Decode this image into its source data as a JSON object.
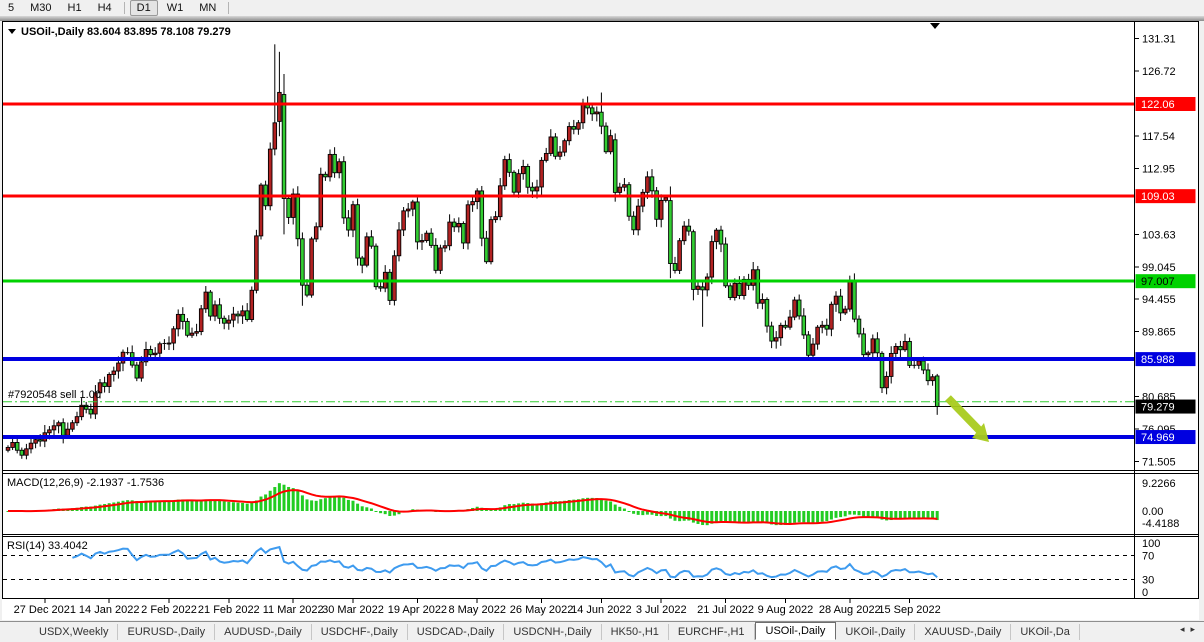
{
  "toolbar": {
    "items": [
      {
        "label": "5",
        "active": false
      },
      {
        "label": "M30",
        "active": false
      },
      {
        "label": "H1",
        "active": false
      },
      {
        "label": "H4",
        "active": false
      },
      {
        "label": "D1",
        "active": true
      },
      {
        "label": "W1",
        "active": false
      },
      {
        "label": "MN",
        "active": false
      }
    ]
  },
  "chart": {
    "title_symbol": "USOil-,Daily",
    "title_quote": "83.604 83.895 78.108 79.279",
    "position_label": "#7920548 sell 1.00",
    "macd_label": "MACD(12,26,9) -2.1937 -1.7536",
    "rsi_label": "RSI(14) 33.4042"
  },
  "chart_data": {
    "type": "candlestick",
    "symbol": "USOil",
    "timeframe": "Daily",
    "last_ohlc": {
      "open": 83.604,
      "high": 83.895,
      "low": 78.108,
      "close": 79.279
    },
    "style": {
      "bull_body": "#B22222",
      "bear_body": "#32CD32",
      "wick": "#000000",
      "macd_hist": "#22CC22",
      "macd_signal": "#FF0000",
      "rsi_line": "#3E9BEF",
      "arrow": "#A9CC1E",
      "chart_bg": "#FFFFFF"
    },
    "price_axis_ticks": [
      "131.31",
      "126.72",
      "117.54",
      "112.95",
      "103.63",
      "99.045",
      "94.455",
      "89.865",
      "80.685",
      "76.095",
      "71.505"
    ],
    "price_badges": [
      {
        "value": "122.06",
        "price": 122.06,
        "bg": "#FF0000",
        "fg": "#FFFFFF"
      },
      {
        "value": "109.03",
        "price": 109.03,
        "bg": "#FF0000",
        "fg": "#FFFFFF"
      },
      {
        "value": "97.007",
        "price": 97.007,
        "bg": "#00D200",
        "fg": "#000000"
      },
      {
        "value": "85.988",
        "price": 85.988,
        "bg": "#0000E0",
        "fg": "#FFFFFF"
      },
      {
        "value": "79.279",
        "price": 79.279,
        "bg": "#000000",
        "fg": "#FFFFFF"
      },
      {
        "value": "74.969",
        "price": 74.969,
        "bg": "#0000E0",
        "fg": "#FFFFFF"
      }
    ],
    "hlines": [
      {
        "name": "resistance-122",
        "price": 122.06,
        "color": "#FF0000",
        "width": 3
      },
      {
        "name": "resistance-109",
        "price": 109.03,
        "color": "#FF0000",
        "width": 3
      },
      {
        "name": "level-97",
        "price": 97.007,
        "color": "#00D200",
        "width": 3
      },
      {
        "name": "support-85",
        "price": 85.988,
        "color": "#0000E0",
        "width": 4
      },
      {
        "name": "support-74",
        "price": 74.969,
        "color": "#0000E0",
        "width": 4
      }
    ],
    "position_line": {
      "price": 79.95,
      "color": "#32CD32",
      "style": "dashdot"
    },
    "bid_line": {
      "price": 79.279,
      "color": "#000000",
      "width": 1
    },
    "date_ticks": [
      {
        "label": "27 Dec 2021",
        "i": 8
      },
      {
        "label": "14 Jan 2022",
        "i": 22
      },
      {
        "label": "2 Feb 2022",
        "i": 35
      },
      {
        "label": "21 Feb 2022",
        "i": 48
      },
      {
        "label": "11 Mar 2022",
        "i": 62
      },
      {
        "label": "30 Mar 2022",
        "i": 75
      },
      {
        "label": "19 Apr 2022",
        "i": 89
      },
      {
        "label": "8 May 2022",
        "i": 102
      },
      {
        "label": "26 May 2022",
        "i": 116
      },
      {
        "label": "14 Jun 2022",
        "i": 129
      },
      {
        "label": "3 Jul 2022",
        "i": 142
      },
      {
        "label": "21 Jul 2022",
        "i": 156
      },
      {
        "label": "9 Aug 2022",
        "i": 169
      },
      {
        "label": "28 Aug 2022",
        "i": 183
      },
      {
        "label": "15 Sep 2022",
        "i": 196
      }
    ],
    "closes": [
      73.5,
      74.2,
      73.1,
      72.4,
      73.3,
      74.1,
      74.6,
      74.4,
      75.57,
      75.98,
      76.56,
      76.99,
      75.21,
      76.08,
      76.99,
      77.85,
      79.46,
      78.9,
      78.23,
      81.22,
      82.64,
      82.12,
      83.82,
      84.3,
      85.43,
      86.96,
      86.9,
      85.14,
      83.31,
      85.6,
      87.35,
      86.61,
      86.82,
      88.15,
      88.2,
      88.26,
      90.27,
      92.31,
      91.32,
      89.36,
      89.66,
      89.88,
      93.1,
      95.46,
      92.07,
      93.66,
      91.76,
      91.07,
      91.5,
      92.35,
      92.1,
      92.81,
      91.59,
      95.72,
      103.41,
      110.6,
      107.67,
      115.68,
      119.4,
      123.7,
      108.7,
      106.02,
      109.33,
      103.01,
      96.44,
      95.04,
      102.98,
      104.7,
      112.12,
      111.76,
      114.93,
      112.34,
      113.9,
      105.96,
      104.24,
      107.82,
      100.28,
      99.27,
      103.28,
      101.96,
      96.23,
      96.03,
      98.26,
      94.29,
      100.6,
      104.25,
      106.95,
      107.2,
      108.21,
      102.56,
      102.75,
      103.79,
      102.07,
      98.54,
      101.7,
      102.02,
      105.36,
      104.69,
      105.17,
      102.41,
      107.81,
      108.26,
      109.77,
      103.09,
      99.76,
      105.71,
      106.13,
      110.49,
      114.2,
      112.4,
      109.59,
      112.21,
      113.23,
      110.29,
      109.77,
      110.33,
      114.09,
      115.07,
      117.4,
      114.67,
      115.26,
      116.87,
      118.87,
      118.5,
      119.41,
      122.11,
      121.51,
      120.67,
      120.93,
      118.93,
      115.31,
      117.58,
      109.56,
      110.3,
      110.65,
      106.19,
      104.27,
      107.62,
      109.57,
      111.76,
      109.78,
      105.76,
      108.43,
      108.8,
      99.5,
      98.53,
      102.73,
      104.79,
      104.09,
      95.84,
      96.3,
      95.78,
      97.59,
      102.6,
      104.22,
      102.26,
      96.35,
      94.7,
      96.7,
      94.98,
      97.26,
      96.42,
      98.62,
      93.89,
      94.42,
      90.66,
      88.54,
      89.01,
      90.76,
      90.5,
      91.93,
      94.34,
      92.09,
      89.41,
      86.53,
      88.11,
      90.5,
      90.77,
      90.23,
      93.74,
      94.89,
      92.52,
      93.06,
      97.01,
      91.64,
      89.55,
      86.61,
      86.87,
      88.85,
      86.88,
      81.94,
      83.54,
      86.79,
      87.78,
      87.31,
      88.48,
      85.1,
      85.11,
      85.73,
      84.45,
      82.94,
      83.49,
      79.279
    ],
    "ohlc_overrides": {
      "58": [
        115.7,
        130.5,
        114.8,
        119.4
      ],
      "59": [
        119.6,
        129.44,
        117.5,
        123.7
      ],
      "60": [
        123.4,
        126.3,
        103.63,
        108.7
      ],
      "64": [
        103.0,
        103.9,
        93.53,
        96.44
      ],
      "129": [
        120.9,
        123.68,
        117.8,
        118.93
      ],
      "132": [
        117.0,
        117.9,
        108.25,
        109.56
      ],
      "144": [
        108.4,
        110.4,
        97.43,
        99.5
      ],
      "149": [
        104.0,
        104.3,
        94.3,
        95.84
      ],
      "151": [
        96.2,
        96.9,
        90.56,
        95.78
      ],
      "190": [
        86.8,
        87.1,
        81.2,
        81.94
      ],
      "202": [
        83.604,
        83.895,
        78.108,
        79.279
      ]
    },
    "macd": {
      "params": "12,26,9",
      "current": -2.1937,
      "signal_current": -1.7536,
      "axis_labels": [
        "9.2266",
        "0.00",
        "-4.4188"
      ]
    },
    "rsi": {
      "period": 14,
      "current": 33.4042,
      "levels_dashed": [
        70,
        30
      ],
      "axis_labels": [
        "100",
        "70",
        "30",
        "0"
      ]
    },
    "arrow_annotation": {
      "meaning": "projected-move-down-to-support"
    }
  },
  "tabs": {
    "items": [
      {
        "label": "USDX,Weekly",
        "active": false
      },
      {
        "label": "EURUSD-,Daily",
        "active": false
      },
      {
        "label": "AUDUSD-,Daily",
        "active": false
      },
      {
        "label": "USDCHF-,Daily",
        "active": false
      },
      {
        "label": "USDCAD-,Daily",
        "active": false
      },
      {
        "label": "USDCNH-,Daily",
        "active": false
      },
      {
        "label": "HK50-,H1",
        "active": false
      },
      {
        "label": "EURCHF-,H1",
        "active": false
      },
      {
        "label": "USOil-,Daily",
        "active": true
      },
      {
        "label": "UKOil-,Daily",
        "active": false
      },
      {
        "label": "XAUUSD-,Daily",
        "active": false
      },
      {
        "label": "UKOil-,Da",
        "active": false
      }
    ],
    "scroll_left_icon": "◂",
    "scroll_right_icon": "▸"
  }
}
